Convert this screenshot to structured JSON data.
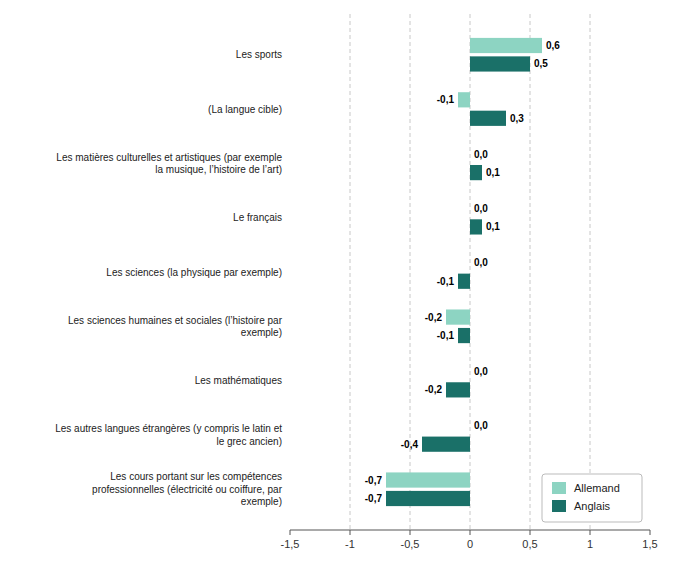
{
  "chart_data": {
    "type": "bar",
    "orientation": "horizontal",
    "categories": [
      "Les cours portant sur les compétences\nprofessionnelles (électricité ou coiffure, par\nexemple)",
      "Les autres langues étrangères (y compris le latin et\nle grec ancien)",
      "Les mathématiques",
      "Les sciences humaines et sociales (l’histoire par\nexemple)",
      "Les sciences (la physique par exemple)",
      "Le français",
      "Les matières culturelles et artistiques (par exemple\nla musique, l’histoire de l’art)",
      "(La langue cible)",
      "Les sports"
    ],
    "series": [
      {
        "name": "Allemand",
        "color": "#8dd4c2",
        "values": [
          -0.7,
          0.0,
          0.0,
          -0.2,
          0.0,
          0.0,
          0.0,
          -0.1,
          0.6
        ],
        "value_labels": [
          "-0,7",
          "0,0",
          "0,0",
          "-0,2",
          "0,0",
          "0,0",
          "0,0",
          "-0,1",
          "0,6"
        ]
      },
      {
        "name": "Anglais",
        "color": "#1a7068",
        "values": [
          -0.7,
          -0.4,
          -0.2,
          -0.1,
          -0.1,
          0.1,
          0.1,
          0.3,
          0.5
        ],
        "value_labels": [
          "-0,7",
          "-0,4",
          "-0,2",
          "-0,1",
          "-0,1",
          "0,1",
          "0,1",
          "0,3",
          "0,5"
        ]
      }
    ],
    "xlim": [
      -1.5,
      1.5
    ],
    "xticks": [
      {
        "value": -1.5,
        "label": "-1,5"
      },
      -1,
      {
        "value": -0.5,
        "label": "-0,5"
      },
      0,
      {
        "value": 0.5,
        "label": "0,5"
      },
      1,
      {
        "value": 1.5,
        "label": "1,5"
      }
    ],
    "grid": true,
    "legend": "lower right",
    "data_labels": true
  }
}
